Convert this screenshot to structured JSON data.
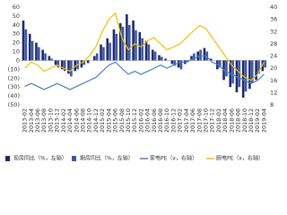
{
  "chart_data": {
    "type": "bar_line",
    "categories": [
      "2013-02",
      "2013-04",
      "2013-06",
      "2013-08",
      "2013-10",
      "2013-12",
      "2014-02",
      "2014-04",
      "2014-06",
      "2014-08",
      "2014-10",
      "2014-12",
      "2015-02",
      "2015-04",
      "2015-06",
      "2015-08",
      "2015-10",
      "2015-12",
      "2016-02",
      "2016-04",
      "2016-06",
      "2016-08",
      "2016-10",
      "2016-12",
      "2017-02",
      "2017-04",
      "2017-06",
      "2017-08",
      "2017-10",
      "2017-12",
      "2018-02",
      "2018-04",
      "2018-06",
      "2018-08",
      "2018-10",
      "2018-12",
      "2019-02",
      "2019-04"
    ],
    "series": [
      {
        "name": "现房同比（%，左轴）",
        "color": "#1f2a6b",
        "kind": "bar",
        "axis": "y",
        "values": [
          45,
          30,
          20,
          12,
          5,
          -5,
          -10,
          -15,
          -12,
          -8,
          -3,
          5,
          18,
          25,
          35,
          42,
          52,
          45,
          32,
          22,
          12,
          6,
          2,
          -4,
          -8,
          -4,
          5,
          10,
          14,
          2,
          -10,
          -22,
          -30,
          -36,
          -42,
          -32,
          -22,
          -12
        ]
      },
      {
        "name": "期房同比（%，左轴）",
        "color": "#3d57a8",
        "kind": "bar",
        "axis": "y",
        "values": [
          35,
          22,
          15,
          8,
          2,
          -8,
          -12,
          -18,
          -10,
          -5,
          0,
          8,
          15,
          20,
          30,
          38,
          40,
          34,
          25,
          18,
          10,
          4,
          0,
          -6,
          -10,
          -2,
          8,
          12,
          10,
          0,
          -8,
          -18,
          -26,
          -30,
          -35,
          -25,
          -15,
          -8
        ]
      },
      {
        "name": "家电PE（x，右轴）",
        "color": "#4a7fc1",
        "kind": "line",
        "axis": "y2",
        "values": [
          14,
          15,
          14,
          13,
          14,
          15,
          14,
          13,
          14,
          15,
          16,
          17,
          19,
          21,
          22,
          20,
          18,
          19,
          18,
          19,
          20,
          21,
          20,
          21,
          22,
          22,
          23,
          24,
          24,
          22,
          21,
          19,
          18,
          17,
          16,
          15,
          16,
          18
        ]
      },
      {
        "name": "厨电PE（x，右轴）",
        "color": "#f0c000",
        "kind": "line",
        "axis": "y2",
        "values": [
          20,
          22,
          21,
          19,
          20,
          21,
          20,
          19,
          21,
          22,
          24,
          27,
          32,
          36,
          38,
          30,
          26,
          28,
          27,
          29,
          30,
          28,
          26,
          27,
          28,
          30,
          32,
          34,
          33,
          30,
          27,
          24,
          21,
          19,
          17,
          16,
          18,
          22
        ]
      }
    ],
    "ylim": [
      -50,
      60
    ],
    "yticks": [
      {
        "value": -50,
        "label": "(50)"
      },
      {
        "value": -40,
        "label": "(40)"
      },
      {
        "value": -30,
        "label": "(30)"
      },
      {
        "value": -20,
        "label": "(20)"
      },
      {
        "value": -10,
        "label": "(10)"
      },
      0,
      10,
      20,
      30,
      40,
      50,
      60
    ],
    "y2lim": [
      8,
      40
    ],
    "y2ticks": [
      8,
      12,
      16,
      20,
      24,
      28,
      32,
      36,
      40
    ]
  }
}
